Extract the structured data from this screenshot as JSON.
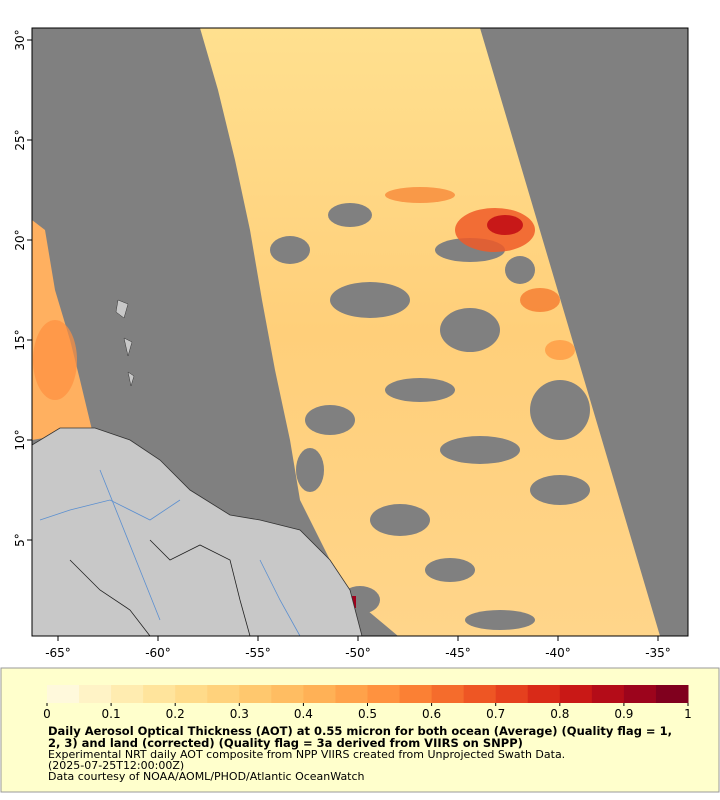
{
  "map": {
    "xlim": [
      -66.3,
      -33.5
    ],
    "ylim": [
      0.2,
      30.6
    ],
    "xticks": [
      {
        "value": -65,
        "label": "-65°"
      },
      {
        "value": -60,
        "label": "-60°"
      },
      {
        "value": -55,
        "label": "-55°"
      },
      {
        "value": -50,
        "label": "-50°"
      },
      {
        "value": -45,
        "label": "-45°"
      },
      {
        "value": -40,
        "label": "-40°"
      },
      {
        "value": -35,
        "label": "-35°"
      }
    ],
    "yticks": [
      {
        "value": 5,
        "label": "5°"
      },
      {
        "value": 10,
        "label": "10°"
      },
      {
        "value": 15,
        "label": "15°"
      },
      {
        "value": 20,
        "label": "20°"
      },
      {
        "value": 25,
        "label": "25°"
      },
      {
        "value": 30,
        "label": "30°"
      }
    ]
  },
  "colorbar": {
    "lim": [
      0,
      1
    ],
    "ticks": [
      0,
      0.1,
      0.2,
      0.3,
      0.4,
      0.5,
      0.6,
      0.7,
      0.8,
      0.9,
      1
    ],
    "colors": [
      "#fff9dc",
      "#fff3c6",
      "#ffecb0",
      "#ffe49c",
      "#ffdb8a",
      "#ffd27c",
      "#ffc86e",
      "#ffbd62",
      "#ffb156",
      "#ffa24a",
      "#ff923f",
      "#fb8034",
      "#f56c2c",
      "#ee5624",
      "#e5401e",
      "#d92a18",
      "#c91816",
      "#b40c18",
      "#9c041c",
      "#80001e"
    ]
  },
  "caption": {
    "title_lines": [
      "Daily Aerosol Optical Thickness (AOT) at 0.55 micron for both ocean (Average) (Quality flag = 1,",
      "2, 3) and land (corrected) (Quality flag = 3a derived from VIIRS on SNPP)"
    ],
    "lines": [
      "Experimental NRT daily AOT composite from NPP VIIRS created from Unprojected Swath Data.",
      "(2025-07-25T12:00:00Z)",
      "Data courtesy of NOAA/AOML/PHOD/Atlantic OceanWatch"
    ]
  }
}
